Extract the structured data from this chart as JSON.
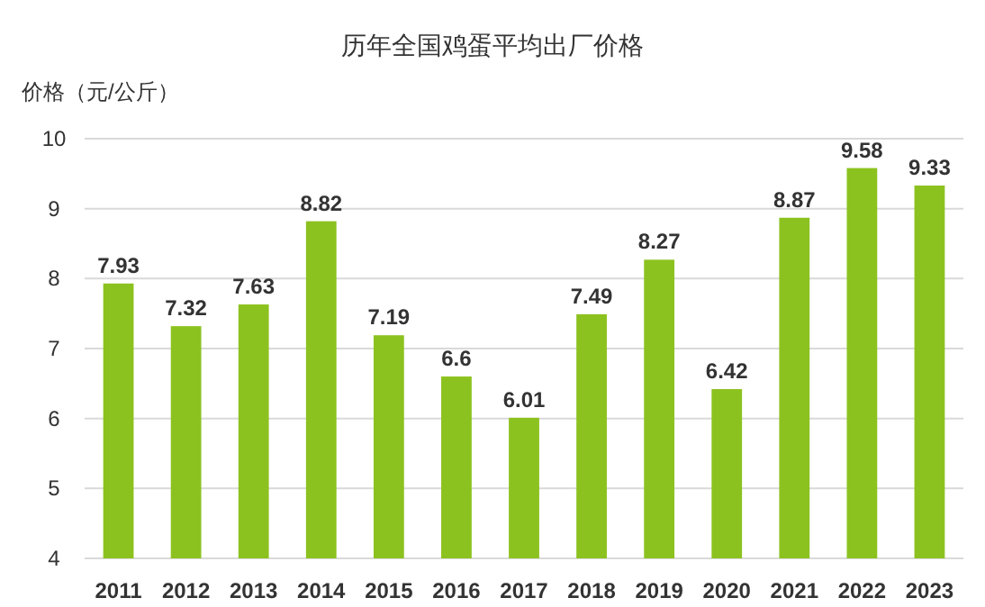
{
  "chart_data": {
    "type": "bar",
    "title": "历年全国鸡蛋平均出厂价格",
    "ylabel": "价格（元/公斤）",
    "categories": [
      "2011",
      "2012",
      "2013",
      "2014",
      "2015",
      "2016",
      "2017",
      "2018",
      "2019",
      "2020",
      "2021",
      "2022",
      "2023"
    ],
    "values": [
      7.93,
      7.32,
      7.63,
      8.82,
      7.19,
      6.6,
      6.01,
      7.49,
      8.27,
      6.42,
      8.87,
      9.58,
      9.33
    ],
    "color": "#8cc21f",
    "ylim": [
      4,
      10
    ],
    "yticks": [
      4,
      5,
      6,
      7,
      8,
      9,
      10
    ],
    "grid": "y",
    "data_labels": true
  }
}
